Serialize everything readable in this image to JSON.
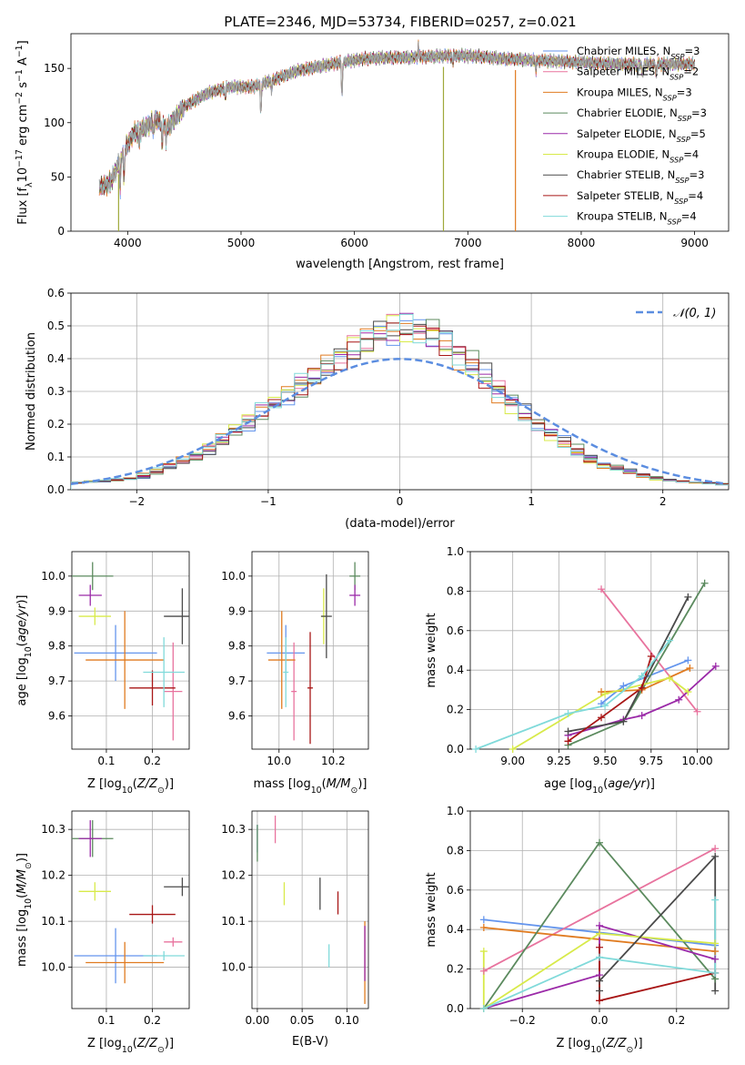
{
  "figure_title": "PLATE=2346, MJD=53734, FIBERID=0257, z=0.021",
  "colors": {
    "Chabrier MILES": "#6495ed",
    "Salpeter MILES": "#e8739e",
    "Kroupa MILES": "#e07b20",
    "Chabrier ELODIE": "#5b8a5e",
    "Salpeter ELODIE": "#9b2aa8",
    "Kroupa ELODIE": "#d8ea4a",
    "Chabrier STELIB": "#4a4a4a",
    "Salpeter STELIB": "#a81616",
    "Kroupa STELIB": "#80dada",
    "data": "#a0a0a0",
    "normal": "#5b8de0"
  },
  "legend_main": [
    {
      "key": "Chabrier MILES",
      "label": "Chabrier MILES, N",
      "sub": "SSP",
      "n": "=3"
    },
    {
      "key": "Salpeter MILES",
      "label": "Salpeter MILES, N",
      "sub": "SSP",
      "n": "=2"
    },
    {
      "key": "Kroupa MILES",
      "label": "Kroupa MILES, N",
      "sub": "SSP",
      "n": "=3"
    },
    {
      "key": "Chabrier ELODIE",
      "label": "Chabrier ELODIE, N",
      "sub": "SSP",
      "n": "=3"
    },
    {
      "key": "Salpeter ELODIE",
      "label": "Salpeter ELODIE, N",
      "sub": "SSP",
      "n": "=5"
    },
    {
      "key": "Kroupa ELODIE",
      "label": "Kroupa ELODIE, N",
      "sub": "SSP",
      "n": "=4"
    },
    {
      "key": "Chabrier STELIB",
      "label": "Chabrier STELIB, N",
      "sub": "SSP",
      "n": "=3"
    },
    {
      "key": "Salpeter STELIB",
      "label": "Salpeter STELIB, N",
      "sub": "SSP",
      "n": "=4"
    },
    {
      "key": "Kroupa STELIB",
      "label": "Kroupa STELIB, N",
      "sub": "SSP",
      "n": "=4"
    }
  ],
  "chart_data": [
    {
      "id": "spectrum",
      "type": "line",
      "xlabel": "wavelength [Angstrom, rest frame]",
      "ylabel": "Flux [f_λ 10^-17 erg cm^-2 s^-1 A^-1]",
      "xlim": [
        3500,
        9300
      ],
      "ylim": [
        0,
        182
      ],
      "xticks": [
        4000,
        5000,
        6000,
        7000,
        8000,
        9000
      ],
      "yticks": [
        0,
        50,
        100,
        150
      ],
      "grid": false,
      "legend": "top-right",
      "continuum": [
        [
          3750,
          40
        ],
        [
          3850,
          45
        ],
        [
          3950,
          70
        ],
        [
          4050,
          90
        ],
        [
          4150,
          95
        ],
        [
          4250,
          103
        ],
        [
          4350,
          95
        ],
        [
          4500,
          115
        ],
        [
          4700,
          127
        ],
        [
          4900,
          133
        ],
        [
          5100,
          133
        ],
        [
          5300,
          140
        ],
        [
          5500,
          148
        ],
        [
          5700,
          152
        ],
        [
          5900,
          156
        ],
        [
          6100,
          159
        ],
        [
          6300,
          160
        ],
        [
          6500,
          160
        ],
        [
          6700,
          161
        ],
        [
          6900,
          162
        ],
        [
          7100,
          161
        ],
        [
          7300,
          159
        ],
        [
          7500,
          158
        ],
        [
          7700,
          157
        ],
        [
          7900,
          156
        ],
        [
          8100,
          155
        ],
        [
          8300,
          154
        ],
        [
          8500,
          154
        ],
        [
          8700,
          154
        ],
        [
          8900,
          154
        ],
        [
          9000,
          154
        ]
      ],
      "absorption": [
        [
          3934,
          30
        ],
        [
          3969,
          25
        ],
        [
          4101,
          12
        ],
        [
          4227,
          10
        ],
        [
          4304,
          18
        ],
        [
          4340,
          12
        ],
        [
          4861,
          10
        ],
        [
          5175,
          30
        ],
        [
          5270,
          10
        ],
        [
          5890,
          35
        ],
        [
          6563,
          6
        ],
        [
          6867,
          8
        ],
        [
          7600,
          10
        ],
        [
          8498,
          8
        ],
        [
          8542,
          12
        ],
        [
          8662,
          10
        ]
      ],
      "emission": [
        [
          6563,
          22
        ]
      ],
      "spikes": [
        [
          3920,
          0
        ],
        [
          6785,
          0
        ],
        [
          7420,
          0
        ]
      ]
    },
    {
      "id": "residuals",
      "type": "histogram",
      "xlabel": "(data-model)/error",
      "ylabel": "Normed distribution",
      "xlim": [
        -2.5,
        2.5
      ],
      "ylim": [
        0,
        0.6
      ],
      "xticks": [
        -2,
        -1,
        0,
        1,
        2
      ],
      "xtick_labels": [
        "−2",
        "−1",
        "0",
        "1",
        "2"
      ],
      "yticks": [
        0.0,
        0.1,
        0.2,
        0.3,
        0.4,
        0.5,
        0.6
      ],
      "grid": true,
      "legend": "top-right",
      "legend_label": "𝒩(0, 1)",
      "bin_width": 0.1,
      "envelope": [
        [
          -2.5,
          0.02
        ],
        [
          -2.0,
          0.035
        ],
        [
          -1.5,
          0.11
        ],
        [
          -1.0,
          0.25
        ],
        [
          -0.6,
          0.36
        ],
        [
          -0.2,
          0.47
        ],
        [
          0.0,
          0.5
        ],
        [
          0.3,
          0.47
        ],
        [
          0.6,
          0.36
        ],
        [
          1.0,
          0.21
        ],
        [
          1.5,
          0.08
        ],
        [
          2.0,
          0.03
        ],
        [
          2.5,
          0.015
        ]
      ]
    },
    {
      "id": "age-vs-z",
      "type": "errorbar",
      "xlabel": "Z [log10(Z/Z⊙)]",
      "ylabel": "age [log10(age/yr)]",
      "xlim": [
        0.025,
        0.28
      ],
      "ylim": [
        9.505,
        10.07
      ],
      "xticks": [
        0.1,
        0.2
      ],
      "xtick_labels": [
        "0.1",
        "0.2"
      ],
      "yticks": [
        9.6,
        9.7,
        9.8,
        9.9,
        10.0
      ],
      "ytick_labels": [
        "9.6",
        "9.7",
        "9.8",
        "9.9",
        "10.0"
      ],
      "grid": true,
      "points": [
        {
          "key": "Chabrier MILES",
          "x": 0.12,
          "y": 9.78,
          "xerr": 0.09,
          "yerr": 0.08
        },
        {
          "key": "Salpeter MILES",
          "x": 0.245,
          "y": 9.67,
          "xerr": 0.02,
          "yerr": 0.14
        },
        {
          "key": "Kroupa MILES",
          "x": 0.14,
          "y": 9.76,
          "xerr": 0.085,
          "yerr": 0.14
        },
        {
          "key": "Chabrier ELODIE",
          "x": 0.07,
          "y": 10.0,
          "xerr": 0.045,
          "yerr": 0.04
        },
        {
          "key": "Salpeter ELODIE",
          "x": 0.065,
          "y": 9.945,
          "xerr": 0.025,
          "yerr": 0.03
        },
        {
          "key": "Kroupa ELODIE",
          "x": 0.075,
          "y": 9.885,
          "xerr": 0.035,
          "yerr": 0.025
        },
        {
          "key": "Chabrier STELIB",
          "x": 0.265,
          "y": 9.885,
          "xerr": 0.04,
          "yerr": 0.08
        },
        {
          "key": "Salpeter STELIB",
          "x": 0.2,
          "y": 9.68,
          "xerr": 0.05,
          "yerr": 0.05
        },
        {
          "key": "Kroupa STELIB",
          "x": 0.225,
          "y": 9.725,
          "xerr": 0.045,
          "yerr": 0.1
        }
      ]
    },
    {
      "id": "age-vs-mass",
      "type": "errorbar",
      "xlabel": "mass [log10(M/M⊙)]",
      "xlim": [
        9.9,
        10.33
      ],
      "ylim": [
        9.505,
        10.07
      ],
      "xticks": [
        10.0,
        10.2
      ],
      "xtick_labels": [
        "10.0",
        "10.2"
      ],
      "yticks": [
        9.6,
        9.7,
        9.8,
        9.9,
        10.0
      ],
      "ytick_labels": [
        "9.6",
        "9.7",
        "9.8",
        "9.9",
        "10.0"
      ],
      "grid": true,
      "points": [
        {
          "key": "Chabrier MILES",
          "x": 10.025,
          "y": 9.78,
          "xerr": 0.07,
          "yerr": 0.08
        },
        {
          "key": "Salpeter MILES",
          "x": 10.055,
          "y": 9.67,
          "xerr": 0.01,
          "yerr": 0.14
        },
        {
          "key": "Kroupa MILES",
          "x": 10.01,
          "y": 9.76,
          "xerr": 0.05,
          "yerr": 0.14
        },
        {
          "key": "Chabrier ELODIE",
          "x": 10.28,
          "y": 10.0,
          "xerr": 0.02,
          "yerr": 0.04
        },
        {
          "key": "Salpeter ELODIE",
          "x": 10.28,
          "y": 9.945,
          "xerr": 0.02,
          "yerr": 0.03
        },
        {
          "key": "Kroupa ELODIE",
          "x": 10.165,
          "y": 9.885,
          "xerr": 0.01,
          "yerr": 0.08
        },
        {
          "key": "Chabrier STELIB",
          "x": 10.175,
          "y": 9.885,
          "xerr": 0.02,
          "yerr": 0.12
        },
        {
          "key": "Salpeter STELIB",
          "x": 10.115,
          "y": 9.68,
          "xerr": 0.01,
          "yerr": 0.16
        },
        {
          "key": "Kroupa STELIB",
          "x": 10.025,
          "y": 9.725,
          "xerr": 0.01,
          "yerr": 0.1
        }
      ]
    },
    {
      "id": "weight-vs-age",
      "type": "line",
      "xlabel": "age [log10(age/yr)]",
      "ylabel": "mass weight",
      "xlim": [
        8.77,
        10.17
      ],
      "ylim": [
        0,
        1.0
      ],
      "xticks": [
        9.0,
        9.25,
        9.5,
        9.75,
        10.0
      ],
      "xtick_labels": [
        "9.00",
        "9.25",
        "9.50",
        "9.75",
        "10.00"
      ],
      "yticks": [
        0.0,
        0.2,
        0.4,
        0.6,
        0.8,
        1.0
      ],
      "ytick_labels": [
        "0.0",
        "0.2",
        "0.4",
        "0.6",
        "0.8",
        "1.0"
      ],
      "grid": true,
      "series": [
        {
          "key": "Chabrier MILES",
          "x": [
            9.48,
            9.6,
            9.95
          ],
          "y": [
            0.23,
            0.32,
            0.45
          ]
        },
        {
          "key": "Salpeter MILES",
          "x": [
            9.48,
            10.0
          ],
          "y": [
            0.81,
            0.19
          ]
        },
        {
          "key": "Kroupa MILES",
          "x": [
            9.48,
            9.7,
            9.96
          ],
          "y": [
            0.29,
            0.3,
            0.41
          ]
        },
        {
          "key": "Chabrier ELODIE",
          "x": [
            9.3,
            9.6,
            10.04
          ],
          "y": [
            0.02,
            0.14,
            0.84
          ]
        },
        {
          "key": "Salpeter ELODIE",
          "x": [
            9.3,
            9.6,
            9.7,
            9.9,
            10.1
          ],
          "y": [
            0.07,
            0.15,
            0.17,
            0.25,
            0.42
          ]
        },
        {
          "key": "Kroupa ELODIE",
          "x": [
            9.0,
            9.5,
            9.85,
            9.95
          ],
          "y": [
            0.0,
            0.28,
            0.36,
            0.29
          ]
        },
        {
          "key": "Chabrier STELIB",
          "x": [
            9.3,
            9.6,
            9.95
          ],
          "y": [
            0.09,
            0.14,
            0.77
          ]
        },
        {
          "key": "Salpeter STELIB",
          "x": [
            9.3,
            9.48,
            9.7,
            9.75
          ],
          "y": [
            0.04,
            0.16,
            0.31,
            0.47
          ]
        },
        {
          "key": "Kroupa STELIB",
          "x": [
            8.8,
            9.3,
            9.5,
            9.7,
            9.85
          ],
          "y": [
            0.0,
            0.18,
            0.22,
            0.37,
            0.55
          ]
        }
      ]
    },
    {
      "id": "mass-vs-z",
      "type": "errorbar",
      "xlabel": "Z [log10(Z/Z⊙)]",
      "ylabel": "mass [log10(M/M⊙)]",
      "xlim": [
        0.025,
        0.28
      ],
      "ylim": [
        9.91,
        10.34
      ],
      "xticks": [
        0.1,
        0.2
      ],
      "xtick_labels": [
        "0.1",
        "0.2"
      ],
      "yticks": [
        10.0,
        10.1,
        10.2,
        10.3
      ],
      "ytick_labels": [
        "10.0",
        "10.1",
        "10.2",
        "10.3"
      ],
      "grid": true,
      "points": [
        {
          "key": "Chabrier MILES",
          "x": 0.12,
          "y": 10.025,
          "xerr": 0.09,
          "yerr": 0.06
        },
        {
          "key": "Salpeter MILES",
          "x": 0.245,
          "y": 10.055,
          "xerr": 0.02,
          "yerr": 0.01
        },
        {
          "key": "Kroupa MILES",
          "x": 0.14,
          "y": 10.01,
          "xerr": 0.085,
          "yerr": 0.045
        },
        {
          "key": "Chabrier ELODIE",
          "x": 0.07,
          "y": 10.28,
          "xerr": 0.045,
          "yerr": 0.04
        },
        {
          "key": "Salpeter ELODIE",
          "x": 0.065,
          "y": 10.28,
          "xerr": 0.025,
          "yerr": 0.04
        },
        {
          "key": "Kroupa ELODIE",
          "x": 0.075,
          "y": 10.165,
          "xerr": 0.035,
          "yerr": 0.02
        },
        {
          "key": "Chabrier STELIB",
          "x": 0.265,
          "y": 10.175,
          "xerr": 0.04,
          "yerr": 0.02
        },
        {
          "key": "Salpeter STELIB",
          "x": 0.2,
          "y": 10.115,
          "xerr": 0.05,
          "yerr": 0.02
        },
        {
          "key": "Kroupa STELIB",
          "x": 0.225,
          "y": 10.025,
          "xerr": 0.045,
          "yerr": 0.01
        }
      ]
    },
    {
      "id": "mass-vs-ebv",
      "type": "errorbar",
      "xlabel": "E(B-V)",
      "xlim": [
        -0.006,
        0.124
      ],
      "ylim": [
        9.91,
        10.34
      ],
      "xticks": [
        0.0,
        0.05,
        0.1
      ],
      "xtick_labels": [
        "0.00",
        "0.05",
        "0.10"
      ],
      "yticks": [
        10.0,
        10.1,
        10.2,
        10.3
      ],
      "ytick_labels": [
        "10.0",
        "10.1",
        "10.2",
        "10.3"
      ],
      "grid": true,
      "points": [
        {
          "key": "Chabrier MILES",
          "x": 0.0,
          "y": 10.28,
          "xerr": 0,
          "yerr": 0.03
        },
        {
          "key": "Salpeter MILES",
          "x": 0.02,
          "y": 10.3,
          "xerr": 0,
          "yerr": 0.03
        },
        {
          "key": "Kroupa MILES",
          "x": 0.12,
          "y": 10.01,
          "xerr": 0,
          "yerr": 0.09
        },
        {
          "key": "Chabrier ELODIE",
          "x": 0.0,
          "y": 10.27,
          "xerr": 0,
          "yerr": 0.04
        },
        {
          "key": "Salpeter ELODIE",
          "x": 0.12,
          "y": 10.03,
          "xerr": 0,
          "yerr": 0.06
        },
        {
          "key": "Kroupa ELODIE",
          "x": 0.03,
          "y": 10.16,
          "xerr": 0,
          "yerr": 0.025
        },
        {
          "key": "Chabrier STELIB",
          "x": 0.07,
          "y": 10.16,
          "xerr": 0,
          "yerr": 0.035
        },
        {
          "key": "Salpeter STELIB",
          "x": 0.09,
          "y": 10.14,
          "xerr": 0,
          "yerr": 0.025
        },
        {
          "key": "Kroupa STELIB",
          "x": 0.08,
          "y": 10.025,
          "xerr": 0,
          "yerr": 0.025
        }
      ]
    },
    {
      "id": "weight-vs-z",
      "type": "line",
      "xlabel": "Z [log10(Z/Z⊙)]",
      "ylabel": "mass weight",
      "xlim": [
        -0.335,
        0.335
      ],
      "ylim": [
        0,
        1.0
      ],
      "xticks": [
        -0.2,
        0.0,
        0.2
      ],
      "xtick_labels": [
        "−0.2",
        "0.0",
        "0.2"
      ],
      "yticks": [
        0.0,
        0.2,
        0.4,
        0.6,
        0.8,
        1.0
      ],
      "ytick_labels": [
        "0.0",
        "0.2",
        "0.4",
        "0.6",
        "0.8",
        "1.0"
      ],
      "grid": true,
      "series": [
        {
          "key": "Chabrier MILES",
          "x": [
            -0.3,
            0.3
          ],
          "y": [
            0.45,
            0.32
          ]
        },
        {
          "key": "Salpeter MILES",
          "x": [
            -0.3,
            0.3
          ],
          "y": [
            0.19,
            0.81
          ]
        },
        {
          "key": "Kroupa MILES",
          "x": [
            -0.3,
            0.3
          ],
          "y": [
            0.41,
            0.29
          ]
        },
        {
          "key": "Chabrier ELODIE",
          "x": [
            -0.3,
            0.0,
            0.3
          ],
          "y": [
            0.0,
            0.84,
            0.15
          ]
        },
        {
          "key": "Salpeter ELODIE",
          "x": [
            -0.3,
            0.0,
            0.0,
            0.3
          ],
          "y": [
            0.0,
            0.17,
            0.42,
            0.25
          ]
        },
        {
          "key": "Kroupa ELODIE",
          "x": [
            -0.3,
            -0.3,
            0.0,
            0.3
          ],
          "y": [
            0.29,
            0.0,
            0.38,
            0.33
          ]
        },
        {
          "key": "Chabrier STELIB",
          "x": [
            0.0,
            0.0,
            0.3,
            0.3
          ],
          "y": [
            0.09,
            0.14,
            0.77,
            0.09
          ]
        },
        {
          "key": "Salpeter STELIB",
          "x": [
            0.0,
            0.0,
            0.3
          ],
          "y": [
            0.31,
            0.04,
            0.18
          ]
        },
        {
          "key": "Kroupa STELIB",
          "x": [
            -0.3,
            0.0,
            0.3,
            0.3
          ],
          "y": [
            0.0,
            0.26,
            0.18,
            0.55
          ]
        }
      ]
    }
  ]
}
